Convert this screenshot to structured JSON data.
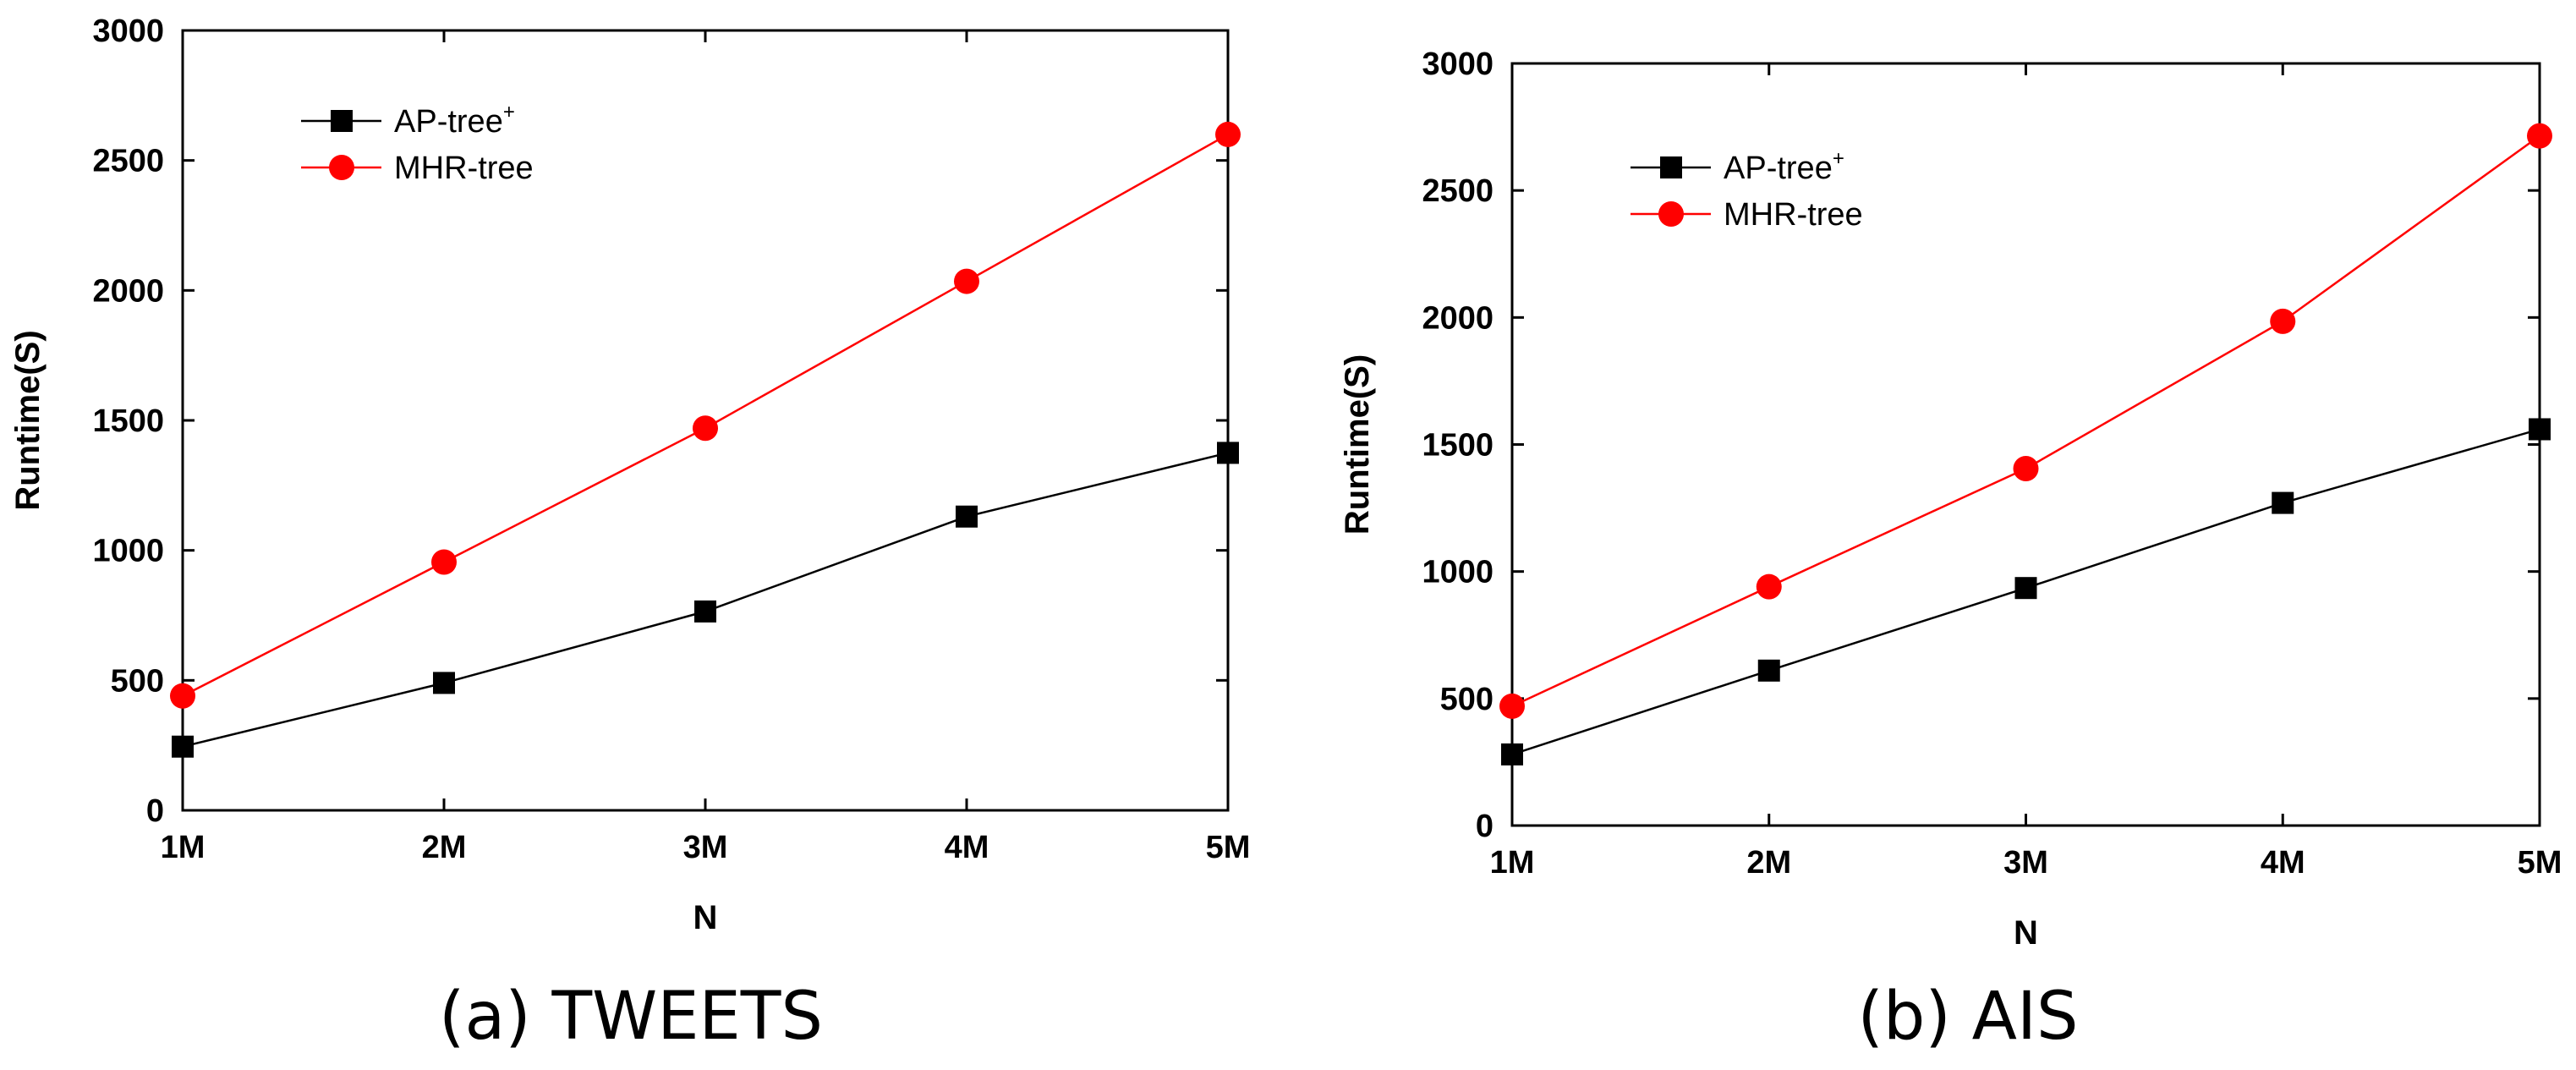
{
  "chart_data": [
    {
      "type": "line",
      "caption": "(a) TWEETS",
      "xlabel": "N",
      "ylabel": "Runtime(S)",
      "categories": [
        "1M",
        "2M",
        "3M",
        "4M",
        "5M"
      ],
      "ylim": [
        0,
        3000
      ],
      "yticks": [
        "0",
        "500",
        "1000",
        "1500",
        "2000",
        "2500",
        "3000"
      ],
      "grid": false,
      "legend_position": "top-left",
      "series": [
        {
          "name": "AP-tree",
          "name_sup": "+",
          "marker": "square",
          "color": "#000000",
          "values": [
            245,
            490,
            765,
            1130,
            1375
          ]
        },
        {
          "name": "MHR-tree",
          "name_sup": "",
          "marker": "circle",
          "color": "#ff0000",
          "values": [
            440,
            955,
            1470,
            2035,
            2600
          ]
        }
      ]
    },
    {
      "type": "line",
      "caption": "(b) AIS",
      "xlabel": "N",
      "ylabel": "Runtime(S)",
      "categories": [
        "1M",
        "2M",
        "3M",
        "4M",
        "5M"
      ],
      "ylim": [
        0,
        3000
      ],
      "yticks": [
        "0",
        "500",
        "1000",
        "1500",
        "2000",
        "2500",
        "3000"
      ],
      "grid": false,
      "legend_position": "top-left",
      "series": [
        {
          "name": "AP-tree",
          "name_sup": "+",
          "marker": "square",
          "color": "#000000",
          "values": [
            280,
            610,
            935,
            1270,
            1560
          ]
        },
        {
          "name": "MHR-tree",
          "name_sup": "",
          "marker": "circle",
          "color": "#ff0000",
          "values": [
            470,
            940,
            1405,
            1985,
            2715
          ]
        }
      ]
    }
  ]
}
